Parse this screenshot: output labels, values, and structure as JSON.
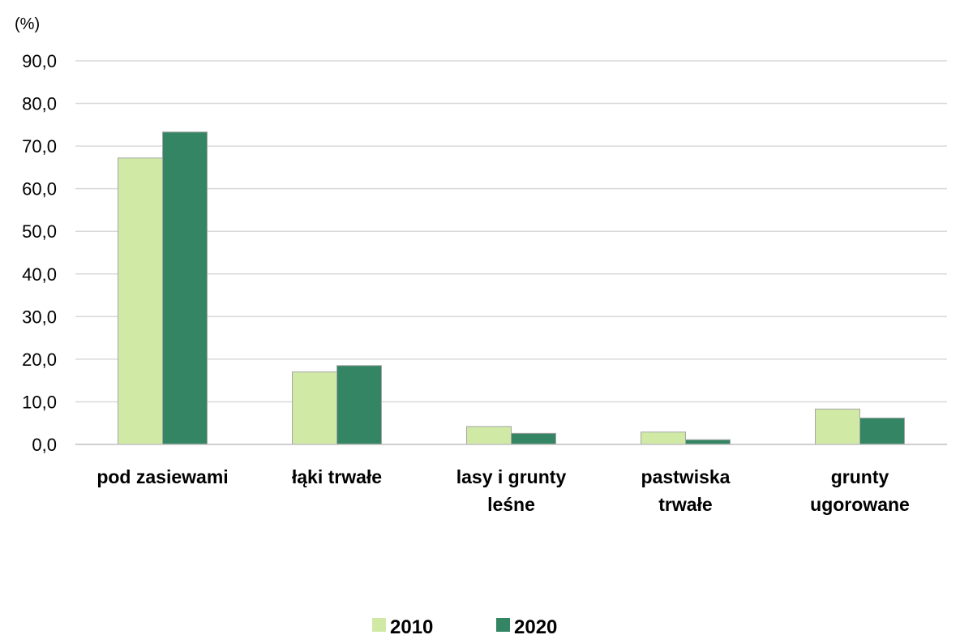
{
  "chart_data": {
    "type": "bar",
    "unit_label": "(%)",
    "categories": [
      [
        "pod zasiewami"
      ],
      [
        "łąki trwałe"
      ],
      [
        "lasy i grunty",
        "leśne"
      ],
      [
        "pastwiska",
        "trwałe"
      ],
      [
        "grunty",
        "ugorowane"
      ]
    ],
    "series": [
      {
        "name": "2010",
        "color": "#d0eaa6",
        "values": [
          67.2,
          17.0,
          4.2,
          2.9,
          8.3
        ]
      },
      {
        "name": "2020",
        "color": "#338563",
        "values": [
          73.3,
          18.5,
          2.6,
          1.1,
          6.2
        ]
      }
    ],
    "ylim": [
      0,
      90
    ],
    "yticks": [
      "0,0",
      "10,0",
      "20,0",
      "30,0",
      "40,0",
      "50,0",
      "60,0",
      "70,0",
      "80,0",
      "90,0"
    ],
    "ytick_values": [
      0,
      10,
      20,
      30,
      40,
      50,
      60,
      70,
      80,
      90
    ],
    "grid": true,
    "legend_position": "bottom"
  }
}
